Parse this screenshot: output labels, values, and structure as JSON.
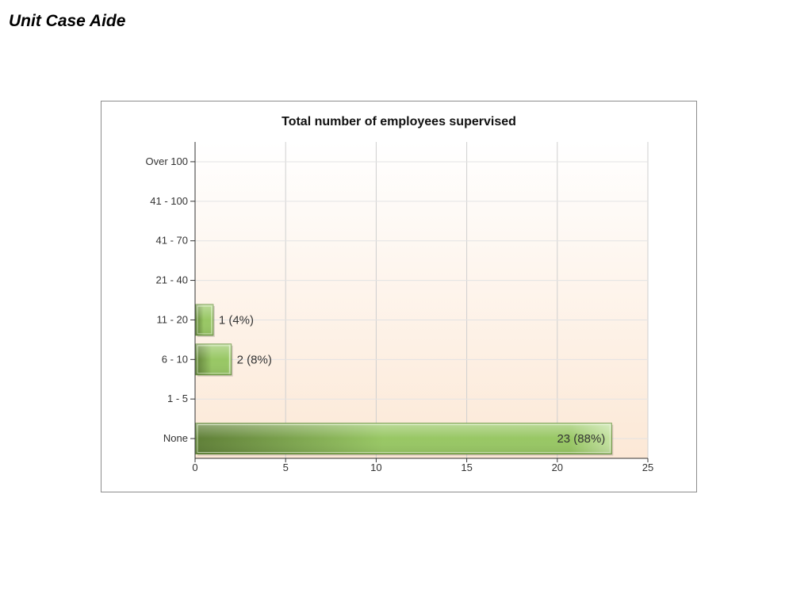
{
  "page": {
    "title": "Unit Case Aide"
  },
  "chart_data": {
    "type": "bar",
    "orientation": "horizontal",
    "title": "Total number of employees supervised",
    "xlabel": "",
    "ylabel": "",
    "categories": [
      "Over 100",
      "41 - 100",
      "41 - 70",
      "21 - 40",
      "11 - 20",
      "6 - 10",
      "1 - 5",
      "None"
    ],
    "values": [
      0,
      0,
      0,
      0,
      1,
      2,
      0,
      23
    ],
    "data_labels": [
      "",
      "",
      "",
      "",
      "1 (4%)",
      "2 (8%)",
      "",
      "23 (88%)"
    ],
    "xlim": [
      0,
      25
    ],
    "xticks": [
      0,
      5,
      10,
      15,
      20,
      25
    ],
    "xtick_labels": [
      "0",
      "5",
      "10",
      "15",
      "20",
      "25"
    ],
    "grid": true,
    "legend": "none",
    "colors": {
      "bar_dark": "#5f7f37",
      "bar_mid": "#98c764",
      "bar_light": "#c4e2a1",
      "bar_border": "#6e9444",
      "plot_bg_top": "#ffffff",
      "plot_bg_bottom": "#fce8d6",
      "grid": "#cfcfcf",
      "axis": "#333333"
    }
  }
}
